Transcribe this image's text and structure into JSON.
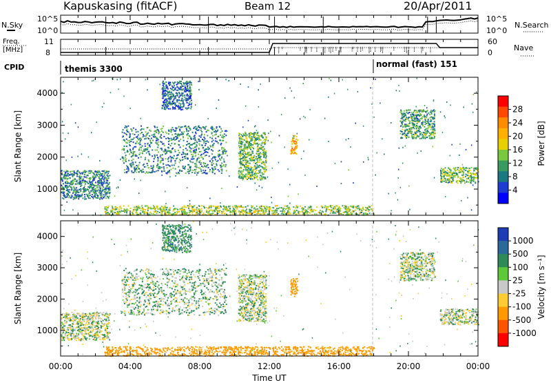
{
  "header": {
    "station": "Kapuskasing (fitACF)",
    "beam": "Beam 12",
    "date": "20/Apr/2011"
  },
  "summary_panels": {
    "noise": {
      "left_label": "N.Sky",
      "right_label": "N.Search",
      "left_ticks": [
        "10^5",
        "10^0"
      ],
      "right_ticks": [
        "10^5",
        "10^0"
      ]
    },
    "freq": {
      "left_label_line1": "Freq.",
      "left_label_line2": "[MHz]",
      "right_label": "Nave",
      "left_ticks": [
        "11",
        "8"
      ],
      "right_ticks": [
        "60",
        "0"
      ]
    },
    "cpid": {
      "label": "CPID",
      "segments": [
        {
          "name": "themis 3300"
        },
        {
          "name": "normal (fast) 151"
        }
      ]
    }
  },
  "colorbars": {
    "power": {
      "title": "Power [dB]",
      "ticks": [
        "28",
        "24",
        "20",
        "16",
        "12",
        "8",
        "4"
      ],
      "colors": [
        "#ff0000",
        "#ff4a00",
        "#ff8c00",
        "#ffb000",
        "#e6d000",
        "#7ac840",
        "#3a9a60",
        "#1c7880",
        "#1e3cd0",
        "#0000ff"
      ]
    },
    "velocity": {
      "title": "Velocity [m s⁻¹]",
      "ticks": [
        "1000",
        "500",
        "100",
        "25",
        "-25",
        "-100",
        "-500",
        "-1000"
      ],
      "colors": [
        "#1e3cb4",
        "#2a6a9a",
        "#2f8a5a",
        "#5ec83a",
        "#c8c8c8",
        "#ffcc33",
        "#ff9900",
        "#ff5500",
        "#ff0000"
      ]
    }
  },
  "x_axis": {
    "label": "Time UT",
    "ticks": [
      "00:00",
      "04:00",
      "08:00",
      "12:00",
      "16:00",
      "20:00",
      "00:00"
    ]
  },
  "chart_data": [
    {
      "type": "heatmap",
      "title": "Power",
      "ylabel": "Slant Range [km]",
      "xlabel": "Time UT",
      "ylim": [
        180,
        4500
      ],
      "xlim": [
        0,
        24
      ],
      "yticks": [
        "4000",
        "3000",
        "2000",
        "1000"
      ],
      "zlabel": "Power [dB]",
      "scatter_regions": [
        {
          "t_start": 0.0,
          "t_end": 2.8,
          "r_start": 700,
          "r_end": 1600,
          "dominant_db": 8
        },
        {
          "t_start": 3.5,
          "t_end": 9.5,
          "r_start": 1500,
          "r_end": 3000,
          "dominant_db": 8
        },
        {
          "t_start": 5.8,
          "t_end": 7.5,
          "r_start": 3500,
          "r_end": 4400,
          "dominant_db": 6
        },
        {
          "t_start": 10.2,
          "t_end": 11.8,
          "r_start": 1300,
          "r_end": 2800,
          "dominant_db": 12
        },
        {
          "t_start": 13.2,
          "t_end": 13.6,
          "r_start": 2100,
          "r_end": 2700,
          "dominant_db": 20
        },
        {
          "t_start": 19.5,
          "t_end": 21.5,
          "r_start": 2600,
          "r_end": 3500,
          "dominant_db": 10
        },
        {
          "t_start": 21.8,
          "t_end": 24.0,
          "r_start": 1200,
          "r_end": 1700,
          "dominant_db": 12
        },
        {
          "t_start": 2.5,
          "t_end": 18.0,
          "r_start": 200,
          "r_end": 500,
          "dominant_db": 14
        }
      ]
    },
    {
      "type": "heatmap",
      "title": "Velocity",
      "ylabel": "Slant Range [km]",
      "xlabel": "Time UT",
      "ylim": [
        180,
        4500
      ],
      "xlim": [
        0,
        24
      ],
      "yticks": [
        "4000",
        "3000",
        "2000",
        "1000"
      ],
      "zlabel": "Velocity [m s⁻¹]",
      "scatter_regions": [
        {
          "t_start": 0.0,
          "t_end": 2.8,
          "r_start": 700,
          "r_end": 1600,
          "dominant_velocity": 0
        },
        {
          "t_start": 3.5,
          "t_end": 9.5,
          "r_start": 1500,
          "r_end": 3000,
          "dominant_velocity": 20
        },
        {
          "t_start": 5.8,
          "t_end": 7.5,
          "r_start": 3500,
          "r_end": 4400,
          "dominant_velocity": 60
        },
        {
          "t_start": 10.2,
          "t_end": 11.8,
          "r_start": 1300,
          "r_end": 2800,
          "dominant_velocity": 0
        },
        {
          "t_start": 13.2,
          "t_end": 13.6,
          "r_start": 2100,
          "r_end": 2700,
          "dominant_velocity": -200
        },
        {
          "t_start": 19.5,
          "t_end": 21.5,
          "r_start": 2600,
          "r_end": 3500,
          "dominant_velocity": 0
        },
        {
          "t_start": 21.8,
          "t_end": 24.0,
          "r_start": 1200,
          "r_end": 1700,
          "dominant_velocity": 0
        },
        {
          "t_start": 2.5,
          "t_end": 18.0,
          "r_start": 200,
          "r_end": 500,
          "dominant_velocity": -150
        }
      ]
    }
  ]
}
